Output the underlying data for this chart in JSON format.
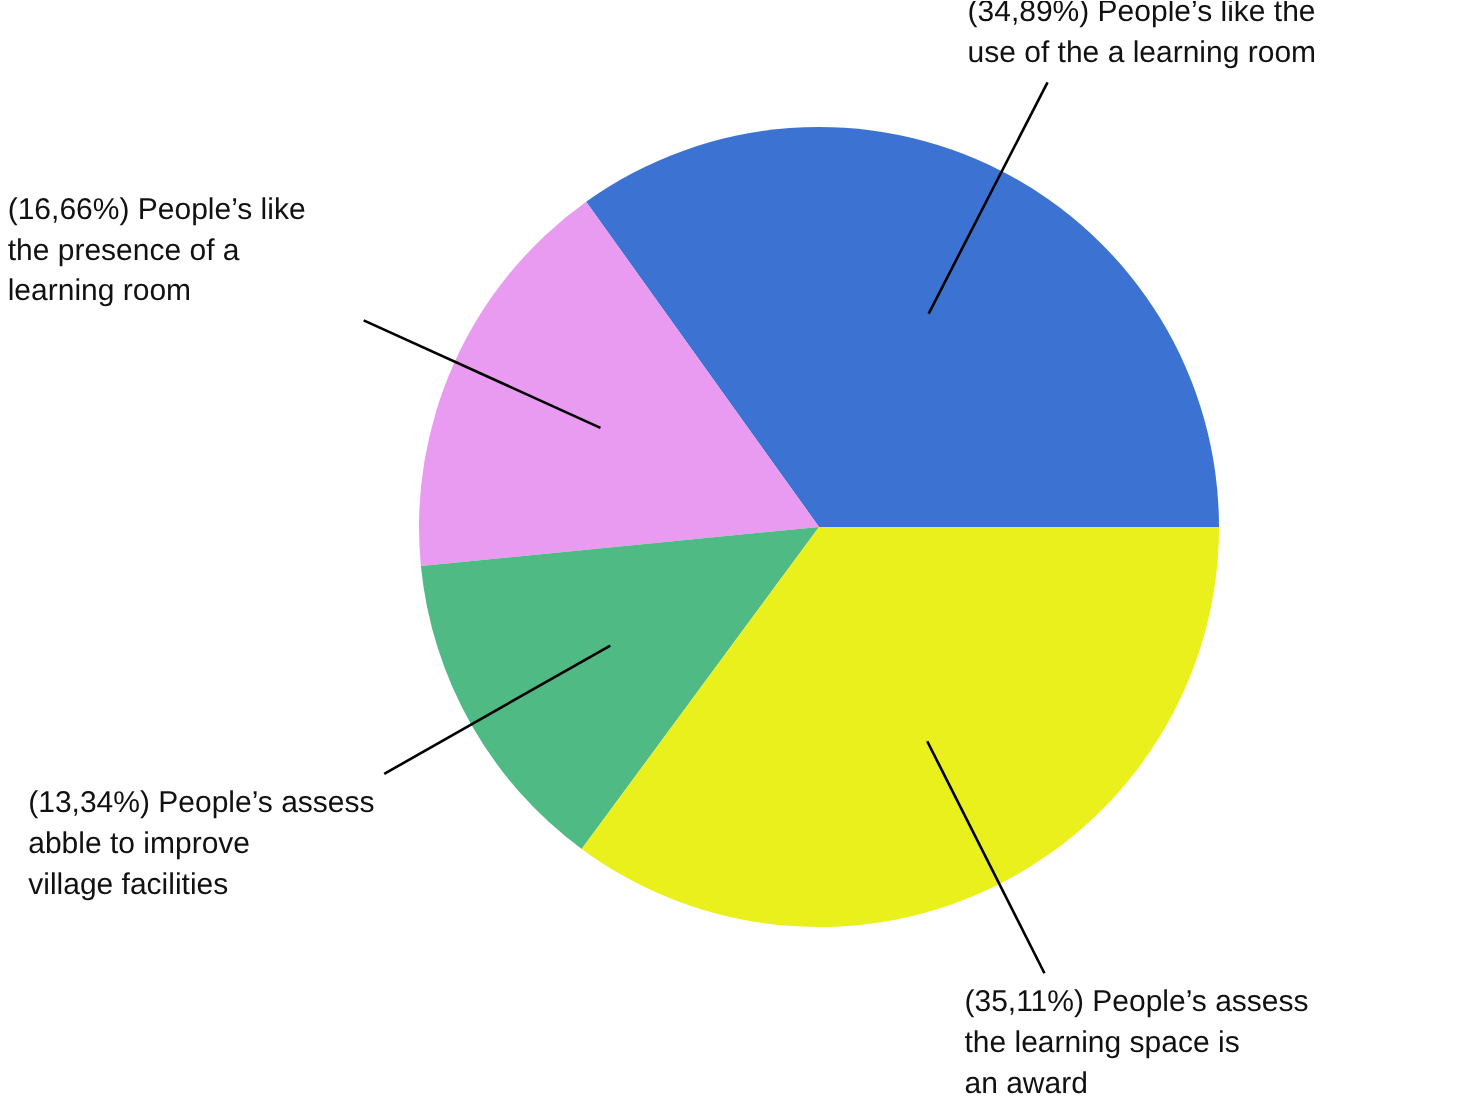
{
  "chart_data": {
    "type": "pie",
    "categories": [
      "People’s like the\nuse of the a learning room",
      "People’s like\nthe presence of a\nlearning room",
      "People’s assess\nabble to improve\nvillage facilities",
      "People’s assess\nthe learning space is\nan award"
    ],
    "values": [
      34.89,
      16.66,
      13.34,
      35.11
    ],
    "value_labels": [
      "(34,89%)",
      "(16,66%)",
      "(13,34%)",
      "(35,11%)"
    ],
    "colors": [
      "#3c73d2",
      "#e89bf1",
      "#4fba83",
      "#e9f01c"
    ]
  }
}
